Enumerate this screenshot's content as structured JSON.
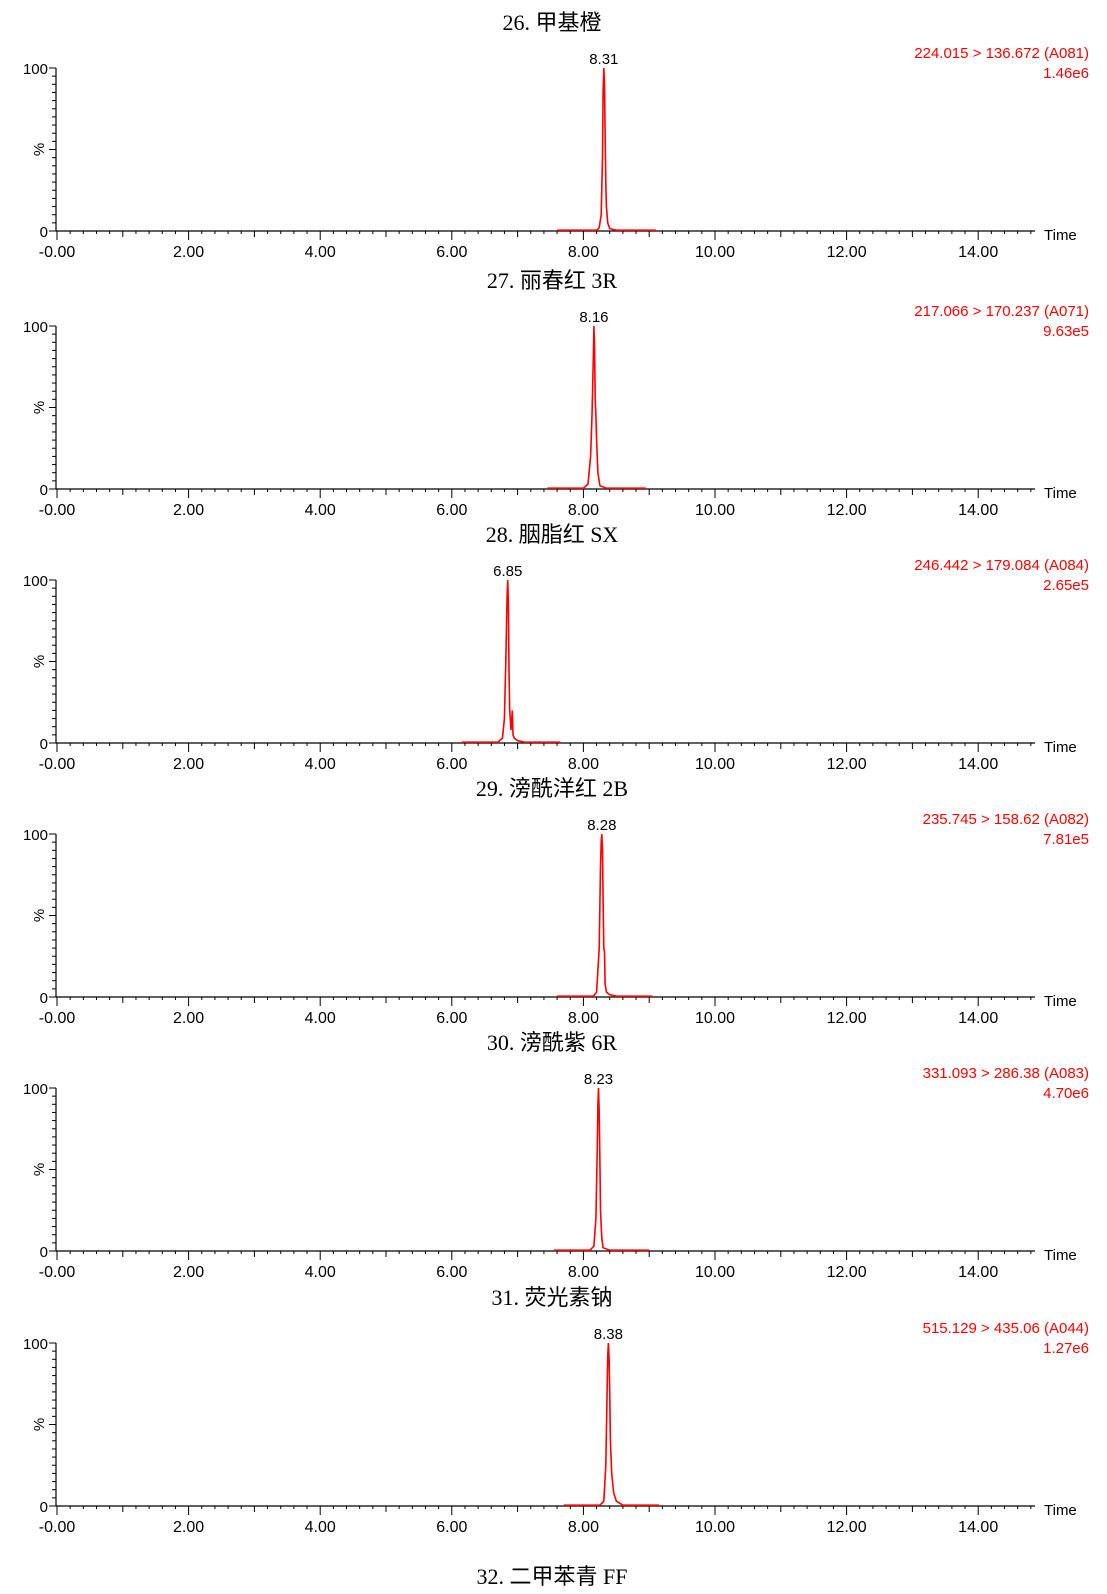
{
  "chart_data": [
    {
      "type": "line",
      "title": "26. 甲基橙",
      "peak_label": "8.31",
      "transition": "224.015 > 136.672 (A081)",
      "intensity": "1.46e6",
      "xlabel": "Time",
      "ylabel": "%",
      "xlim": [
        0,
        15.0
      ],
      "ylim": [
        0,
        100
      ],
      "x_ticks": [
        "-0.00",
        "2.00",
        "4.00",
        "6.00",
        "8.00",
        "10.00",
        "12.00",
        "14.00"
      ],
      "y_ticks": [
        "0",
        "100"
      ],
      "baseline_range": [
        7.6,
        9.1
      ],
      "series": [
        {
          "x": [
            7.6,
            8.2,
            8.24,
            8.27,
            8.29,
            8.3,
            8.31,
            8.32,
            8.33,
            8.34,
            8.35,
            8.37,
            8.4,
            8.5,
            9.1
          ],
          "y": [
            0.5,
            0.5,
            2,
            10,
            45,
            85,
            100,
            90,
            60,
            30,
            15,
            5,
            1.5,
            0.5,
            0.5
          ]
        }
      ]
    },
    {
      "type": "line",
      "title": "27. 丽春红 3R",
      "peak_label": "8.16",
      "transition": "217.066 > 170.237 (A071)",
      "intensity": "9.63e5",
      "xlabel": "Time",
      "ylabel": "%",
      "xlim": [
        0,
        15.0
      ],
      "ylim": [
        0,
        100
      ],
      "x_ticks": [
        "-0.00",
        "2.00",
        "4.00",
        "6.00",
        "8.00",
        "10.00",
        "12.00",
        "14.00"
      ],
      "y_ticks": [
        "0",
        "100"
      ],
      "baseline_range": [
        7.45,
        8.95
      ],
      "series": [
        {
          "x": [
            7.45,
            8.0,
            8.07,
            8.11,
            8.13,
            8.15,
            8.16,
            8.17,
            8.18,
            8.19,
            8.2,
            8.22,
            8.25,
            8.35,
            8.95
          ],
          "y": [
            0.5,
            0.5,
            3,
            20,
            45,
            80,
            100,
            85,
            55,
            45,
            30,
            10,
            2,
            0.5,
            0.5
          ]
        }
      ]
    },
    {
      "type": "line",
      "title": "28. 胭脂红 SX",
      "peak_label": "6.85",
      "transition": "246.442 > 179.084 (A084)",
      "intensity": "2.65e5",
      "xlabel": "Time",
      "ylabel": "%",
      "xlim": [
        0,
        15.0
      ],
      "ylim": [
        0,
        100
      ],
      "x_ticks": [
        "-0.00",
        "2.00",
        "4.00",
        "6.00",
        "8.00",
        "10.00",
        "12.00",
        "14.00"
      ],
      "y_ticks": [
        "0",
        "100"
      ],
      "baseline_range": [
        6.15,
        7.65
      ],
      "series": [
        {
          "x": [
            6.15,
            6.7,
            6.77,
            6.8,
            6.82,
            6.84,
            6.85,
            6.86,
            6.87,
            6.88,
            6.9,
            6.92,
            6.93,
            6.95,
            7.0,
            7.1,
            7.65
          ],
          "y": [
            0.5,
            0.5,
            3,
            15,
            50,
            90,
            100,
            85,
            45,
            20,
            8,
            20,
            5,
            3,
            1.5,
            0.5,
            0.5
          ]
        }
      ]
    },
    {
      "type": "line",
      "title": "29. 滂酰洋红 2B",
      "peak_label": "8.28",
      "transition": "235.745 > 158.62 (A082)",
      "intensity": "7.81e5",
      "xlabel": "Time",
      "ylabel": "%",
      "xlim": [
        0,
        15.0
      ],
      "ylim": [
        0,
        100
      ],
      "x_ticks": [
        "-0.00",
        "2.00",
        "4.00",
        "6.00",
        "8.00",
        "10.00",
        "12.00",
        "14.00"
      ],
      "y_ticks": [
        "0",
        "100"
      ],
      "baseline_range": [
        7.6,
        9.05
      ],
      "series": [
        {
          "x": [
            7.6,
            8.15,
            8.2,
            8.24,
            8.26,
            8.27,
            8.28,
            8.29,
            8.3,
            8.31,
            8.32,
            8.33,
            8.35,
            8.4,
            8.5,
            9.05
          ],
          "y": [
            0.5,
            0.5,
            3,
            30,
            80,
            95,
            100,
            90,
            60,
            30,
            28,
            8,
            3,
            1.5,
            0.5,
            0.5
          ]
        }
      ]
    },
    {
      "type": "line",
      "title": "30. 滂酰紫 6R",
      "peak_label": "8.23",
      "transition": "331.093 > 286.38 (A083)",
      "intensity": "4.70e6",
      "xlabel": "Time",
      "ylabel": "%",
      "xlim": [
        0,
        15.0
      ],
      "ylim": [
        0,
        100
      ],
      "x_ticks": [
        "-0.00",
        "2.00",
        "4.00",
        "6.00",
        "8.00",
        "10.00",
        "12.00",
        "14.00"
      ],
      "y_ticks": [
        "0",
        "100"
      ],
      "baseline_range": [
        7.55,
        9.0
      ],
      "series": [
        {
          "x": [
            7.55,
            8.1,
            8.16,
            8.19,
            8.21,
            8.22,
            8.23,
            8.24,
            8.25,
            8.26,
            8.28,
            8.3,
            8.4,
            9.0
          ],
          "y": [
            0.5,
            0.5,
            3,
            20,
            60,
            90,
            100,
            85,
            55,
            25,
            8,
            2,
            0.5,
            0.5
          ]
        }
      ]
    },
    {
      "type": "line",
      "title": "31. 荧光素钠",
      "peak_label": "8.38",
      "transition": "515.129 > 435.06 (A044)",
      "intensity": "1.27e6",
      "xlabel": "Time",
      "ylabel": "%",
      "xlim": [
        0,
        15.0
      ],
      "ylim": [
        0,
        100
      ],
      "x_ticks": [
        "-0.00",
        "2.00",
        "4.00",
        "6.00",
        "8.00",
        "10.00",
        "12.00",
        "14.00"
      ],
      "y_ticks": [
        "0",
        "100"
      ],
      "baseline_range": [
        7.7,
        9.15
      ],
      "series": [
        {
          "x": [
            7.7,
            8.25,
            8.31,
            8.34,
            8.36,
            8.37,
            8.38,
            8.39,
            8.4,
            8.41,
            8.43,
            8.46,
            8.5,
            8.6,
            9.15
          ],
          "y": [
            0.5,
            0.5,
            3,
            25,
            70,
            92,
            100,
            90,
            70,
            40,
            20,
            8,
            3,
            0.5,
            0.5
          ]
        }
      ]
    }
  ],
  "footer_title": "32. 二甲苯青 FF",
  "colors": {
    "trace": "#ff0000",
    "axis": "#000000",
    "annotation": "#ff0000"
  }
}
